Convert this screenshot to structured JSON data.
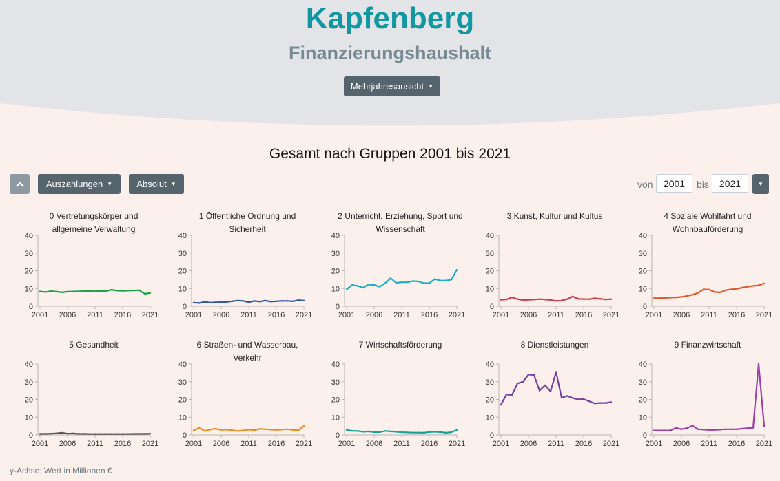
{
  "header": {
    "title": "Kapfenberg",
    "subtitle": "Finanzierungshaushalt",
    "view_button": "Mehrjahresansicht"
  },
  "section_title": "Gesamt nach Gruppen 2001 bis 2021",
  "controls": {
    "type_button": "Auszahlungen",
    "mode_button": "Absolut",
    "from_label": "von",
    "from_value": "2001",
    "to_label": "bis",
    "to_value": "2021"
  },
  "footnote": "y-Achse: Wert in Millionen €",
  "colors": {
    "header_bg": "#e3e4e8",
    "page_bg": "#fcf0ec",
    "title": "#12969f",
    "button": "#56646e"
  },
  "chart_data": [
    {
      "type": "line",
      "title": [
        "0 Vertretungskörper und",
        "allgemeine Verwaltung"
      ],
      "color": "#1e9e48",
      "x": [
        2001,
        2002,
        2003,
        2004,
        2005,
        2006,
        2007,
        2008,
        2009,
        2010,
        2011,
        2012,
        2013,
        2014,
        2015,
        2016,
        2017,
        2018,
        2019,
        2020,
        2021
      ],
      "y": [
        8.3,
        8.0,
        8.5,
        8.2,
        7.8,
        8.2,
        8.3,
        8.4,
        8.5,
        8.6,
        8.4,
        8.6,
        8.5,
        9.3,
        8.8,
        8.7,
        8.8,
        8.9,
        9.0,
        7.0,
        7.5
      ],
      "xticks": [
        2001,
        2006,
        2011,
        2016,
        2021
      ],
      "yticks": [
        0,
        10,
        20,
        30,
        40
      ],
      "ylim": [
        0,
        40
      ]
    },
    {
      "type": "line",
      "title": [
        "1 Öffentliche Ordnung und",
        "Sicherheit"
      ],
      "color": "#2f55a4",
      "x": [
        2001,
        2002,
        2003,
        2004,
        2005,
        2006,
        2007,
        2008,
        2009,
        2010,
        2011,
        2012,
        2013,
        2014,
        2015,
        2016,
        2017,
        2018,
        2019,
        2020,
        2021
      ],
      "y": [
        2.0,
        1.8,
        2.5,
        2.0,
        2.2,
        2.3,
        2.4,
        2.8,
        3.2,
        3.0,
        2.2,
        3.0,
        2.6,
        3.2,
        2.6,
        2.8,
        3.0,
        3.0,
        2.8,
        3.4,
        3.2
      ],
      "xticks": [
        2001,
        2006,
        2011,
        2016,
        2021
      ],
      "yticks": [
        0,
        10,
        20,
        30,
        40
      ],
      "ylim": [
        0,
        40
      ]
    },
    {
      "type": "line",
      "title": [
        "2 Unterricht, Erziehung, Sport und",
        "Wissenschaft"
      ],
      "color": "#19aec4",
      "x": [
        2001,
        2002,
        2003,
        2004,
        2005,
        2006,
        2007,
        2008,
        2009,
        2010,
        2011,
        2012,
        2013,
        2014,
        2015,
        2016,
        2017,
        2018,
        2019,
        2020,
        2021
      ],
      "y": [
        9.5,
        12.0,
        11.5,
        10.5,
        12.3,
        12.0,
        11.0,
        13.0,
        15.8,
        13.2,
        13.5,
        13.5,
        14.2,
        14.0,
        13.0,
        13.0,
        15.3,
        14.5,
        14.5,
        15.0,
        20.5
      ],
      "xticks": [
        2001,
        2006,
        2011,
        2016,
        2021
      ],
      "yticks": [
        0,
        10,
        20,
        30,
        40
      ],
      "ylim": [
        0,
        40
      ]
    },
    {
      "type": "line",
      "title": [
        "3 Kunst, Kultur und Kultus"
      ],
      "color": "#d23c4c",
      "x": [
        2001,
        2002,
        2003,
        2004,
        2005,
        2006,
        2007,
        2008,
        2009,
        2010,
        2011,
        2012,
        2013,
        2014,
        2015,
        2016,
        2017,
        2018,
        2019,
        2020,
        2021
      ],
      "y": [
        3.6,
        3.8,
        5.0,
        4.0,
        3.4,
        3.6,
        3.8,
        4.0,
        3.8,
        3.5,
        3.0,
        3.2,
        4.0,
        5.5,
        4.2,
        4.0,
        4.0,
        4.5,
        4.2,
        3.8,
        4.0
      ],
      "xticks": [
        2001,
        2006,
        2011,
        2016,
        2021
      ],
      "yticks": [
        0,
        10,
        20,
        30,
        40
      ],
      "ylim": [
        0,
        40
      ]
    },
    {
      "type": "line",
      "title": [
        "4 Soziale Wohlfahrt und",
        "Wohnbauförderung"
      ],
      "color": "#e05a2c",
      "x": [
        2001,
        2002,
        2003,
        2004,
        2005,
        2006,
        2007,
        2008,
        2009,
        2010,
        2011,
        2012,
        2013,
        2014,
        2015,
        2016,
        2017,
        2018,
        2019,
        2020,
        2021
      ],
      "y": [
        4.5,
        4.6,
        4.7,
        4.9,
        5.0,
        5.3,
        5.8,
        6.5,
        7.5,
        9.5,
        9.4,
        8.0,
        7.8,
        9.0,
        9.5,
        9.8,
        10.5,
        11.0,
        11.5,
        11.8,
        12.8
      ],
      "xticks": [
        2001,
        2006,
        2011,
        2016,
        2021
      ],
      "yticks": [
        0,
        10,
        20,
        30,
        40
      ],
      "ylim": [
        0,
        40
      ]
    },
    {
      "type": "line",
      "title": [
        "5 Gesundheit"
      ],
      "color": "#555555",
      "x": [
        2001,
        2002,
        2003,
        2004,
        2005,
        2006,
        2007,
        2008,
        2009,
        2010,
        2011,
        2012,
        2013,
        2014,
        2015,
        2016,
        2017,
        2018,
        2019,
        2020,
        2021
      ],
      "y": [
        0.6,
        0.6,
        0.7,
        0.9,
        1.2,
        0.7,
        0.8,
        0.6,
        0.6,
        0.5,
        0.5,
        0.5,
        0.5,
        0.5,
        0.5,
        0.5,
        0.5,
        0.6,
        0.6,
        0.6,
        0.7
      ],
      "xticks": [
        2001,
        2006,
        2011,
        2016,
        2021
      ],
      "yticks": [
        0,
        10,
        20,
        30,
        40
      ],
      "ylim": [
        0,
        40
      ]
    },
    {
      "type": "line",
      "title": [
        "6 Straßen- und Wasserbau,",
        "Verkehr"
      ],
      "color": "#f18a1c",
      "x": [
        2001,
        2002,
        2003,
        2004,
        2005,
        2006,
        2007,
        2008,
        2009,
        2010,
        2011,
        2012,
        2013,
        2014,
        2015,
        2016,
        2017,
        2018,
        2019,
        2020,
        2021
      ],
      "y": [
        2.5,
        4.0,
        2.2,
        3.0,
        3.5,
        2.8,
        3.0,
        2.6,
        2.2,
        2.5,
        3.0,
        2.6,
        3.4,
        3.2,
        3.0,
        2.8,
        3.0,
        3.2,
        2.8,
        2.6,
        5.0
      ],
      "xticks": [
        2001,
        2006,
        2011,
        2016,
        2021
      ],
      "yticks": [
        0,
        10,
        20,
        30,
        40
      ],
      "ylim": [
        0,
        40
      ]
    },
    {
      "type": "line",
      "title": [
        "7 Wirtschaftsförderung"
      ],
      "color": "#16a594",
      "x": [
        2001,
        2002,
        2003,
        2004,
        2005,
        2006,
        2007,
        2008,
        2009,
        2010,
        2011,
        2012,
        2013,
        2014,
        2015,
        2016,
        2017,
        2018,
        2019,
        2020,
        2021
      ],
      "y": [
        2.8,
        2.3,
        2.2,
        1.8,
        2.0,
        1.6,
        1.6,
        2.2,
        2.0,
        1.8,
        1.5,
        1.4,
        1.3,
        1.3,
        1.2,
        1.6,
        1.8,
        1.6,
        1.2,
        1.5,
        2.8
      ],
      "xticks": [
        2001,
        2006,
        2011,
        2016,
        2021
      ],
      "yticks": [
        0,
        10,
        20,
        30,
        40
      ],
      "ylim": [
        0,
        40
      ]
    },
    {
      "type": "line",
      "title": [
        "8 Dienstleistungen"
      ],
      "color": "#7a3f9e",
      "x": [
        2001,
        2002,
        2003,
        2004,
        2005,
        2006,
        2007,
        2008,
        2009,
        2010,
        2011,
        2012,
        2013,
        2014,
        2015,
        2016,
        2017,
        2018,
        2019,
        2020,
        2021
      ],
      "y": [
        17.0,
        22.8,
        22.5,
        29.0,
        30.0,
        34.0,
        33.8,
        25.0,
        28.0,
        24.5,
        35.5,
        21.0,
        22.0,
        20.8,
        20.0,
        20.2,
        19.0,
        17.8,
        18.0,
        18.0,
        18.5
      ],
      "xticks": [
        2001,
        2006,
        2011,
        2016,
        2021
      ],
      "yticks": [
        0,
        10,
        20,
        30,
        40
      ],
      "ylim": [
        0,
        40
      ]
    },
    {
      "type": "line",
      "title": [
        "9 Finanzwirtschaft"
      ],
      "color": "#9c3fa6",
      "x": [
        2001,
        2002,
        2003,
        2004,
        2005,
        2006,
        2007,
        2008,
        2009,
        2010,
        2011,
        2012,
        2013,
        2014,
        2015,
        2016,
        2017,
        2018,
        2019,
        2020,
        2021
      ],
      "y": [
        2.5,
        2.5,
        2.5,
        2.5,
        4.0,
        3.2,
        3.8,
        5.2,
        3.2,
        3.0,
        2.8,
        2.8,
        3.0,
        3.2,
        3.2,
        3.2,
        3.5,
        3.8,
        4.0,
        40.0,
        5.0
      ],
      "xticks": [
        2001,
        2006,
        2011,
        2016,
        2021
      ],
      "yticks": [
        0,
        10,
        20,
        30,
        40
      ],
      "ylim": [
        0,
        40
      ]
    }
  ]
}
